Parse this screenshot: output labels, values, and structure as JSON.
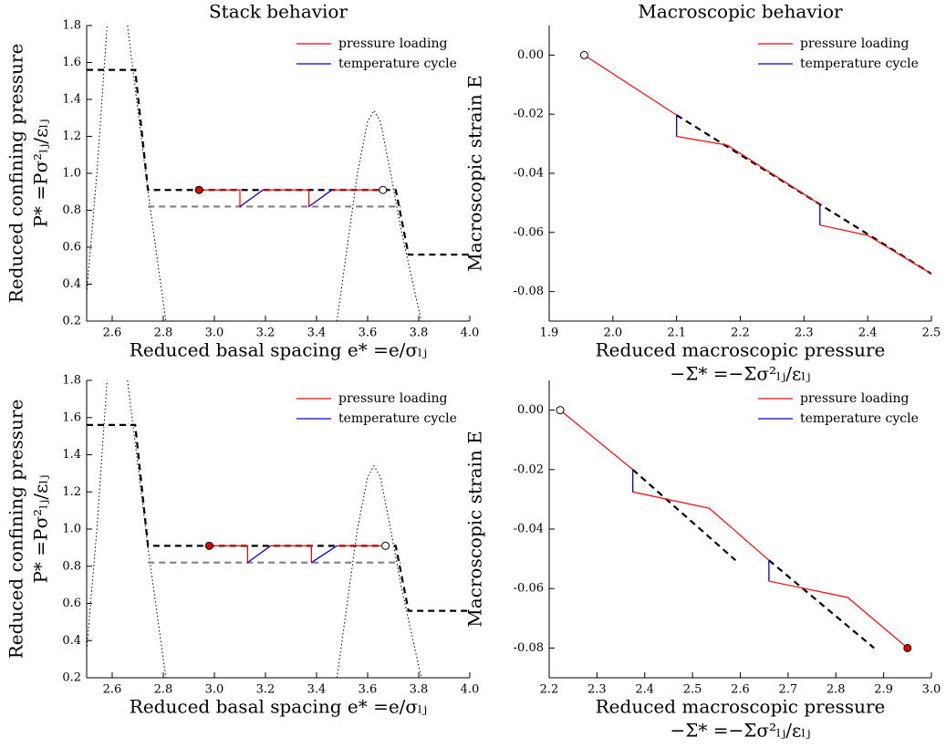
{
  "chart_data": [
    {
      "type": "line",
      "title": "Stack behavior",
      "xlabel": "Reduced basal spacing e* =e/σₗⱼ",
      "ylabel": [
        "Reduced confining pressure",
        "P* =Pσ²ₗⱼ/εₗⱼ"
      ],
      "xlim": [
        2.5,
        4.0
      ],
      "ylim": [
        0.2,
        1.8
      ],
      "xticks": [
        2.6,
        2.8,
        {
          "value": 3,
          "label": "3.0"
        },
        3.2,
        3.4,
        3.6,
        3.8,
        {
          "value": 4,
          "label": "4.0"
        }
      ],
      "yticks": [
        0.2,
        0.4,
        0.6,
        0.8,
        {
          "value": 1,
          "label": "1.0"
        },
        1.2,
        1.4,
        1.6,
        1.8
      ],
      "legend": "upper right",
      "series": [
        {
          "color": "#000000",
          "dash": "dotted",
          "x": [
            2.5,
            2.54,
            2.58,
            null,
            2.66,
            2.7,
            2.74,
            2.78,
            2.81
          ],
          "values": [
            0.35,
            1.0,
            1.8,
            null,
            1.8,
            1.35,
            0.9,
            0.5,
            0.2
          ]
        },
        {
          "color": "#000000",
          "dash": "dotted",
          "x": [
            3.48,
            3.52,
            3.56,
            3.6,
            3.625,
            3.65,
            3.69,
            3.73,
            3.77,
            3.81
          ],
          "values": [
            0.2,
            0.6,
            1.0,
            1.28,
            1.34,
            1.28,
            1.0,
            0.7,
            0.45,
            0.2
          ]
        },
        {
          "color": "#808080",
          "dash": "dashed",
          "x": [
            2.74,
            3.73
          ],
          "values": [
            0.82,
            0.82
          ]
        },
        {
          "color": "#000000",
          "dash": "dashed",
          "x": [
            2.5,
            2.69,
            2.74,
            3.71,
            3.76,
            4.0
          ],
          "values": [
            1.56,
            1.56,
            0.91,
            0.91,
            0.56,
            0.56
          ]
        },
        {
          "name": "pressure loading",
          "color": "#ff0000",
          "dash": "solid",
          "x": [
            2.94,
            3.1,
            3.1,
            3.19,
            3.37,
            3.37,
            3.46,
            3.66
          ],
          "values": [
            0.91,
            0.91,
            0.82,
            0.91,
            0.91,
            0.82,
            0.91,
            0.91
          ]
        },
        {
          "name": "temperature cycle",
          "color": "#0000ff",
          "dash": "solid",
          "x": [
            3.1,
            3.19,
            null,
            3.37,
            3.46
          ],
          "values": [
            0.82,
            0.91,
            null,
            0.82,
            0.91
          ]
        }
      ],
      "markers": [
        {
          "x": 2.94,
          "y": 0.91,
          "color": "#dd0000"
        },
        {
          "x": 3.66,
          "y": 0.91,
          "color": "#ffffff"
        }
      ]
    },
    {
      "type": "line",
      "title": "Macroscopic behavior",
      "xlabel": [
        "Reduced macroscopic pressure",
        "−Σ* =−Σσ²ₗⱼ/εₗⱼ"
      ],
      "ylabel": [
        "Macroscopic strain E"
      ],
      "xlim": [
        1.9,
        2.5
      ],
      "ylim": [
        -0.09,
        0.01
      ],
      "xticks": [
        1.9,
        {
          "value": 2,
          "label": "2.0"
        },
        2.1,
        2.2,
        2.3,
        2.4,
        2.5
      ],
      "yticks": [
        {
          "value": 0,
          "label": "0.00"
        },
        -0.02,
        -0.04,
        -0.06,
        -0.08
      ],
      "legend": "upper right",
      "series": [
        {
          "color": "#000000",
          "dash": "dashed",
          "x": [
            2.1,
            2.5
          ],
          "values": [
            -0.0203,
            -0.074
          ]
        },
        {
          "name": "pressure loading",
          "color": "#ff0000",
          "dash": "solid",
          "x": [
            1.955,
            2.1,
            2.1,
            2.18,
            2.325,
            2.325,
            2.4,
            2.5
          ],
          "values": [
            0.0,
            -0.0203,
            -0.0275,
            -0.0305,
            -0.0505,
            -0.0575,
            -0.061,
            -0.074
          ]
        },
        {
          "name": "temperature cycle",
          "color": "#0000ff",
          "dash": "solid",
          "x": [
            2.1,
            2.1,
            null,
            2.325,
            2.325
          ],
          "values": [
            -0.0203,
            -0.0275,
            null,
            -0.0505,
            -0.0575
          ]
        }
      ],
      "markers": [
        {
          "x": 1.955,
          "y": 0.0,
          "color": "#ffffff"
        }
      ]
    },
    {
      "type": "line",
      "xlabel": "Reduced basal spacing e* =e/σₗⱼ",
      "ylabel": [
        "Reduced confining pressure",
        "P* =Pσ²ₗⱼ/εₗⱼ"
      ],
      "xlim": [
        2.5,
        4.0
      ],
      "ylim": [
        0.2,
        1.8
      ],
      "xticks": [
        2.6,
        2.8,
        {
          "value": 3,
          "label": "3.0"
        },
        3.2,
        3.4,
        3.6,
        3.8,
        {
          "value": 4,
          "label": "4.0"
        }
      ],
      "yticks": [
        0.2,
        0.4,
        0.6,
        0.8,
        {
          "value": 1,
          "label": "1.0"
        },
        1.2,
        1.4,
        1.6,
        1.8
      ],
      "legend": "upper right",
      "series": [
        {
          "color": "#000000",
          "dash": "dotted",
          "x": [
            2.5,
            2.54,
            2.58,
            null,
            2.66,
            2.7,
            2.74,
            2.78,
            2.81
          ],
          "values": [
            0.35,
            1.0,
            1.8,
            null,
            1.8,
            1.35,
            0.9,
            0.5,
            0.2
          ]
        },
        {
          "color": "#000000",
          "dash": "dotted",
          "x": [
            3.48,
            3.52,
            3.56,
            3.6,
            3.625,
            3.65,
            3.69,
            3.73,
            3.77,
            3.81
          ],
          "values": [
            0.2,
            0.6,
            1.0,
            1.28,
            1.34,
            1.28,
            1.0,
            0.7,
            0.45,
            0.2
          ]
        },
        {
          "color": "#808080",
          "dash": "dashed",
          "x": [
            2.74,
            3.73
          ],
          "values": [
            0.82,
            0.82
          ]
        },
        {
          "color": "#000000",
          "dash": "dashed",
          "x": [
            2.5,
            2.69,
            2.74,
            3.71,
            3.76,
            4.0
          ],
          "values": [
            1.56,
            1.56,
            0.91,
            0.91,
            0.56,
            0.56
          ]
        },
        {
          "name": "pressure loading",
          "color": "#ff0000",
          "dash": "solid",
          "x": [
            2.98,
            3.13,
            3.13,
            3.22,
            3.38,
            3.38,
            3.48,
            3.67
          ],
          "values": [
            0.91,
            0.91,
            0.82,
            0.91,
            0.91,
            0.82,
            0.91,
            0.91
          ]
        },
        {
          "name": "temperature cycle",
          "color": "#0000ff",
          "dash": "solid",
          "x": [
            3.13,
            3.22,
            null,
            3.38,
            3.48
          ],
          "values": [
            0.82,
            0.91,
            null,
            0.82,
            0.91
          ]
        }
      ],
      "markers": [
        {
          "x": 2.98,
          "y": 0.91,
          "color": "#dd0000"
        },
        {
          "x": 3.67,
          "y": 0.91,
          "color": "#ffffff"
        }
      ]
    },
    {
      "type": "line",
      "xlabel": [
        "Reduced macroscopic pressure",
        "−Σ* =−Σσ²ₗⱼ/εₗⱼ"
      ],
      "ylabel": [
        "Macroscopic strain E"
      ],
      "xlim": [
        2.2,
        3.0
      ],
      "ylim": [
        -0.09,
        0.01
      ],
      "xticks": [
        2.2,
        2.3,
        2.4,
        2.5,
        2.6,
        2.7,
        2.8,
        2.9,
        {
          "value": 3,
          "label": "3.0"
        }
      ],
      "yticks": [
        {
          "value": 0,
          "label": "0.00"
        },
        -0.02,
        -0.04,
        -0.06,
        -0.08
      ],
      "legend": "upper right",
      "series": [
        {
          "color": "#000000",
          "dash": "dashed",
          "x": [
            2.375,
            2.59,
            null,
            2.66,
            2.88
          ],
          "values": [
            -0.02,
            -0.0505,
            null,
            -0.0505,
            -0.08
          ]
        },
        {
          "name": "pressure loading",
          "color": "#ff0000",
          "dash": "solid",
          "x": [
            2.223,
            2.375,
            2.375,
            2.535,
            2.66,
            2.66,
            2.825,
            2.95
          ],
          "values": [
            0.0,
            -0.02,
            -0.0275,
            -0.033,
            -0.0505,
            -0.0575,
            -0.063,
            -0.08
          ]
        },
        {
          "name": "temperature cycle",
          "color": "#0000ff",
          "dash": "solid",
          "x": [
            2.375,
            2.375,
            null,
            2.66,
            2.66
          ],
          "values": [
            -0.02,
            -0.0275,
            null,
            -0.0505,
            -0.0575
          ]
        }
      ],
      "markers": [
        {
          "x": 2.223,
          "y": 0.0,
          "color": "#ffffff"
        },
        {
          "x": 2.95,
          "y": -0.08,
          "color": "#dd0000"
        }
      ]
    }
  ]
}
